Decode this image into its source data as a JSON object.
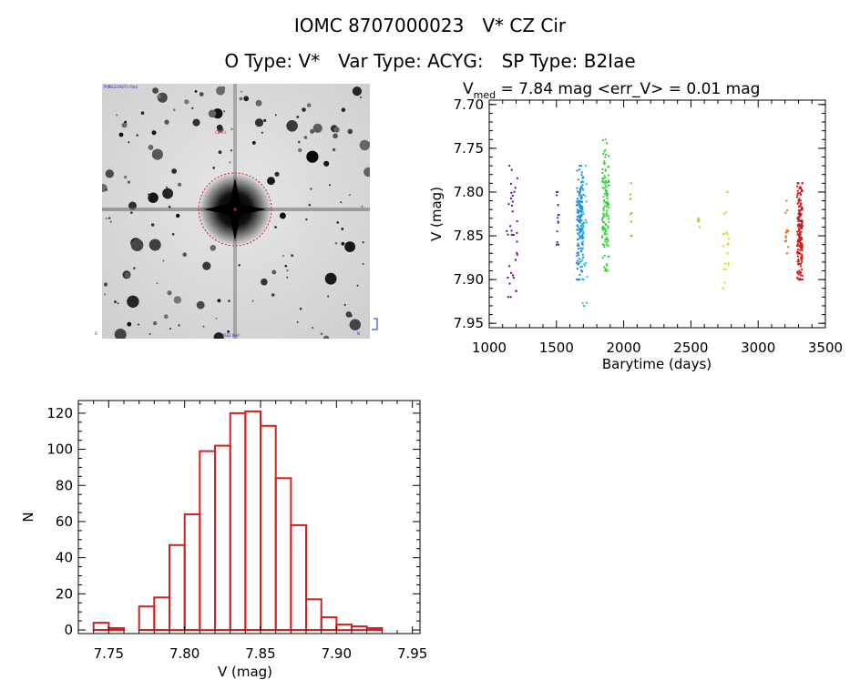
{
  "header": {
    "object_id": "IOMC 8707000023",
    "star_name": "V* CZ Cir",
    "o_type": "O Type: V*",
    "var_type": "Var Type: ACYG:",
    "sp_type": "SP Type: B2Iae"
  },
  "chart_data": [
    {
      "type": "scatter",
      "title_prefix": "V",
      "title_subscript": "med",
      "title_rest": " = 7.84 mag <err_V> = 0.01 mag",
      "xlabel": "Barytime (days)",
      "ylabel": "V (mag)",
      "xlim": [
        1000,
        3500
      ],
      "ylim": [
        7.955,
        7.695
      ],
      "xticks": [
        1000,
        1500,
        2000,
        2500,
        3000,
        3500
      ],
      "yticks": [
        7.7,
        7.75,
        7.8,
        7.85,
        7.9,
        7.95
      ],
      "ytick_labels": [
        "7.70",
        "7.75",
        "7.80",
        "7.85",
        "7.90",
        "7.95"
      ],
      "series": [
        {
          "name": "epoch1",
          "color": "#6a0a8a",
          "x_range": [
            1130,
            1210
          ],
          "y_range": [
            7.77,
            7.92
          ],
          "n": 35
        },
        {
          "name": "epoch2",
          "color": "#3838c8",
          "x_range": [
            1500,
            1520
          ],
          "y_range": [
            7.8,
            7.86
          ],
          "n": 15
        },
        {
          "name": "epoch3",
          "color": "#1f8fe6",
          "x_range": [
            1650,
            1700
          ],
          "y_range": [
            7.77,
            7.9
          ],
          "n": 160
        },
        {
          "name": "epoch4",
          "color": "#2ec8c8",
          "x_range": [
            1690,
            1730
          ],
          "y_range": [
            7.77,
            7.93
          ],
          "n": 30
        },
        {
          "name": "epoch5",
          "color": "#34d234",
          "x_range": [
            1840,
            1890
          ],
          "y_range": [
            7.74,
            7.89
          ],
          "n": 130
        },
        {
          "name": "epoch6",
          "color": "#74d418",
          "x_range": [
            2050,
            2060
          ],
          "y_range": [
            7.79,
            7.85
          ],
          "n": 8
        },
        {
          "name": "epoch7",
          "color": "#a8d414",
          "x_range": [
            2550,
            2565
          ],
          "y_range": [
            7.83,
            7.84
          ],
          "n": 6
        },
        {
          "name": "epoch8",
          "color": "#e6d810",
          "x_range": [
            2740,
            2780
          ],
          "y_range": [
            7.8,
            7.91
          ],
          "n": 22
        },
        {
          "name": "epoch9",
          "color": "#e07010",
          "x_range": [
            3200,
            3225
          ],
          "y_range": [
            7.81,
            7.87
          ],
          "n": 14
        },
        {
          "name": "epoch10",
          "color": "#d01818",
          "x_range": [
            3290,
            3330
          ],
          "y_range": [
            7.79,
            7.9
          ],
          "n": 170
        }
      ]
    },
    {
      "type": "bar",
      "subtype": "histogram",
      "xlabel": "V (mag)",
      "ylabel": "N",
      "xlim": [
        7.73,
        7.955
      ],
      "ylim": [
        -2,
        127
      ],
      "xticks": [
        7.75,
        7.8,
        7.85,
        7.9,
        7.95
      ],
      "xtick_labels": [
        "7.75",
        "7.80",
        "7.85",
        "7.90",
        "7.95"
      ],
      "yticks": [
        0,
        20,
        40,
        60,
        80,
        100,
        120
      ],
      "bin_width": 0.01,
      "bin_starts": [
        7.74,
        7.75,
        7.76,
        7.77,
        7.78,
        7.79,
        7.8,
        7.81,
        7.82,
        7.83,
        7.84,
        7.85,
        7.86,
        7.87,
        7.88,
        7.89,
        7.9,
        7.91,
        7.92,
        7.93
      ],
      "values": [
        4,
        1,
        0,
        13,
        18,
        47,
        64,
        99,
        102,
        120,
        121,
        113,
        84,
        58,
        17,
        7,
        3,
        2,
        1,
        0
      ],
      "bar_color": "#d42020"
    }
  ],
  "sky_image": {
    "label_top_left": "POSS2/UKSTU Red",
    "label_marker": "CZ Cir",
    "label_bottom": "DSS2 Red",
    "label_bottom_left": "0′",
    "label_bottom_right": "N"
  }
}
